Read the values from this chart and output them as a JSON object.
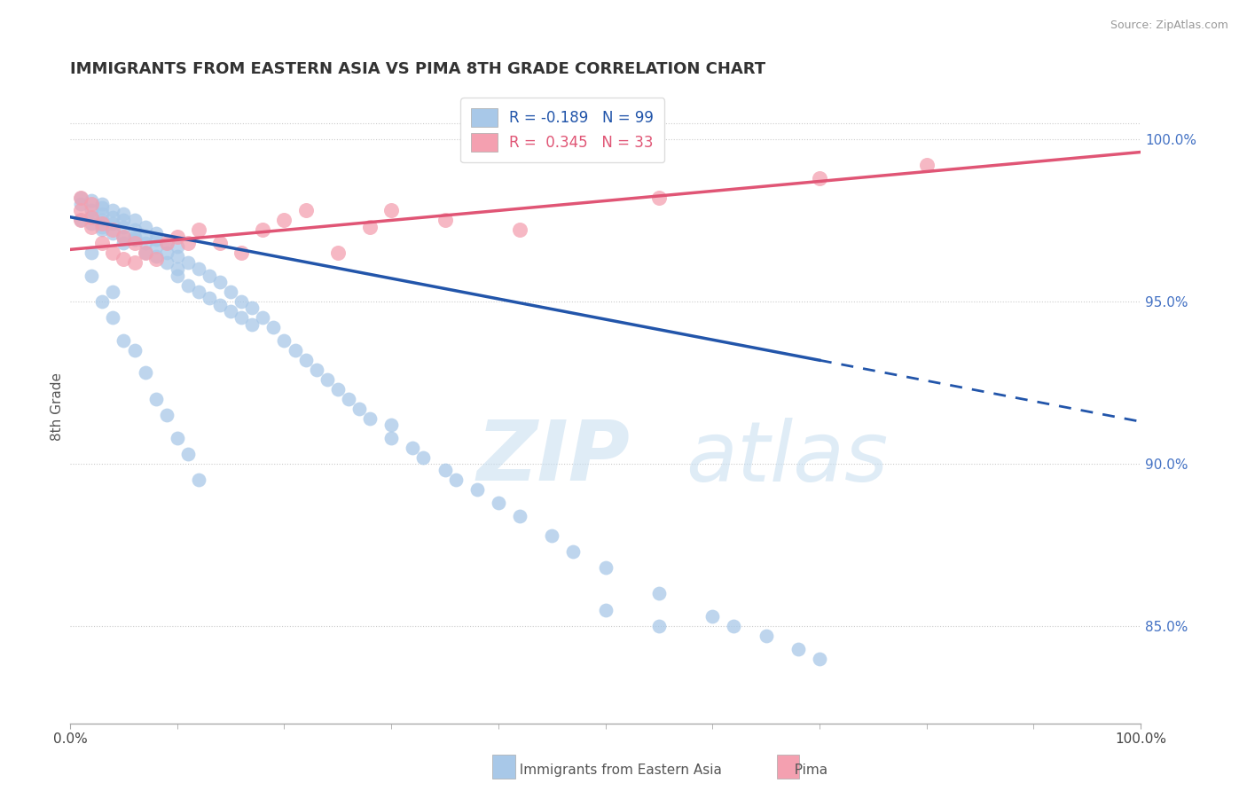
{
  "title": "IMMIGRANTS FROM EASTERN ASIA VS PIMA 8TH GRADE CORRELATION CHART",
  "source_text": "Source: ZipAtlas.com",
  "ylabel": "8th Grade",
  "x_label_bottom_center": "Immigrants from Eastern Asia",
  "x_label_bottom_right": "Pima",
  "watermark_zip": "ZIP",
  "watermark_atlas": "atlas",
  "legend_blue_r": "R = -0.189",
  "legend_blue_n": "N = 99",
  "legend_pink_r": "R =  0.345",
  "legend_pink_n": "N = 33",
  "blue_color": "#a8c8e8",
  "pink_color": "#f4a0b0",
  "blue_line_color": "#2255aa",
  "pink_line_color": "#e05575",
  "background_color": "#ffffff",
  "grid_color": "#cccccc",
  "right_axis_color": "#4472c4",
  "xlim": [
    0,
    100
  ],
  "ylim": [
    82.0,
    101.5
  ],
  "right_ytick_positions": [
    85.0,
    90.0,
    95.0,
    100.0
  ],
  "right_ytick_str": [
    "85.0%",
    "90.0%",
    "95.0%",
    "100.0%"
  ],
  "blue_trend_x0": 0,
  "blue_trend_y0": 97.6,
  "blue_trend_x1": 100,
  "blue_trend_y1": 91.3,
  "blue_solid_end": 70,
  "pink_trend_x0": 0,
  "pink_trend_y0": 96.6,
  "pink_trend_x1": 100,
  "pink_trend_y1": 99.6,
  "blue_x": [
    1,
    1,
    1,
    2,
    2,
    2,
    2,
    3,
    3,
    3,
    3,
    3,
    3,
    4,
    4,
    4,
    4,
    5,
    5,
    5,
    5,
    5,
    6,
    6,
    6,
    6,
    7,
    7,
    7,
    7,
    8,
    8,
    8,
    8,
    9,
    9,
    9,
    10,
    10,
    10,
    10,
    11,
    11,
    12,
    12,
    13,
    13,
    14,
    14,
    15,
    15,
    16,
    16,
    17,
    17,
    18,
    19,
    20,
    21,
    22,
    23,
    24,
    25,
    26,
    27,
    28,
    30,
    30,
    32,
    33,
    35,
    36,
    38,
    40,
    42,
    45,
    47,
    50,
    55,
    60,
    62,
    65,
    68,
    70,
    2,
    2,
    3,
    4,
    4,
    5,
    6,
    7,
    8,
    9,
    10,
    11,
    12,
    50,
    55
  ],
  "blue_y": [
    97.5,
    98.0,
    98.2,
    97.6,
    97.8,
    97.4,
    98.1,
    97.3,
    97.5,
    97.7,
    98.0,
    97.2,
    97.9,
    97.4,
    97.6,
    97.1,
    97.8,
    97.3,
    97.5,
    97.0,
    97.7,
    96.8,
    97.2,
    96.9,
    97.5,
    97.0,
    96.8,
    97.3,
    96.5,
    97.0,
    96.7,
    97.1,
    96.4,
    96.9,
    96.5,
    96.8,
    96.2,
    96.4,
    96.0,
    96.7,
    95.8,
    96.2,
    95.5,
    96.0,
    95.3,
    95.8,
    95.1,
    95.6,
    94.9,
    95.3,
    94.7,
    95.0,
    94.5,
    94.8,
    94.3,
    94.5,
    94.2,
    93.8,
    93.5,
    93.2,
    92.9,
    92.6,
    92.3,
    92.0,
    91.7,
    91.4,
    90.8,
    91.2,
    90.5,
    90.2,
    89.8,
    89.5,
    89.2,
    88.8,
    88.4,
    87.8,
    87.3,
    86.8,
    86.0,
    85.3,
    85.0,
    84.7,
    84.3,
    84.0,
    96.5,
    95.8,
    95.0,
    94.5,
    95.3,
    93.8,
    93.5,
    92.8,
    92.0,
    91.5,
    90.8,
    90.3,
    89.5,
    85.5,
    85.0
  ],
  "pink_x": [
    1,
    1,
    1,
    2,
    2,
    2,
    3,
    3,
    4,
    4,
    5,
    5,
    6,
    6,
    7,
    8,
    9,
    10,
    11,
    12,
    14,
    16,
    18,
    20,
    22,
    25,
    28,
    30,
    35,
    42,
    55,
    70,
    80
  ],
  "pink_y": [
    97.5,
    97.8,
    98.2,
    97.3,
    97.6,
    98.0,
    96.8,
    97.4,
    96.5,
    97.2,
    96.3,
    97.0,
    96.2,
    96.8,
    96.5,
    96.3,
    96.8,
    97.0,
    96.8,
    97.2,
    96.8,
    96.5,
    97.2,
    97.5,
    97.8,
    96.5,
    97.3,
    97.8,
    97.5,
    97.2,
    98.2,
    98.8,
    99.2
  ]
}
